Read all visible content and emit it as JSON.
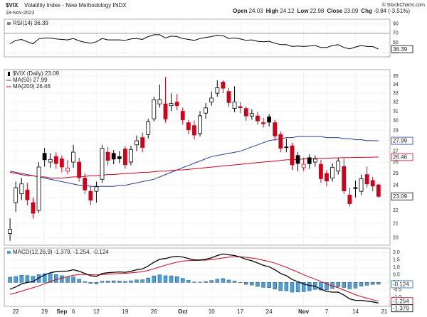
{
  "header": {
    "symbol": "$VIX",
    "name": "Volatility Index - New Methodology INDX",
    "date": "18-Nov-2022",
    "quote": [
      {
        "label": "Open",
        "value": "24.03"
      },
      {
        "label": "High",
        "value": "24.12"
      },
      {
        "label": "Low",
        "value": "22.98"
      },
      {
        "label": "Close",
        "value": "23.09"
      },
      {
        "label": "Chg",
        "value": "-0.84 (-3.51%)"
      }
    ],
    "credit": "© StockCharts.com"
  },
  "x_axis": {
    "xlim": [
      -1,
      66
    ],
    "xticks": [
      {
        "value": 1,
        "label": "22"
      },
      {
        "value": 6,
        "label": "29"
      },
      {
        "value": 9,
        "label": "Sep"
      },
      {
        "value": 11,
        "label": "6"
      },
      {
        "value": 15,
        "label": "12"
      },
      {
        "value": 20,
        "label": "19"
      },
      {
        "value": 25,
        "label": "26"
      },
      {
        "value": 30,
        "label": "Oct"
      },
      {
        "value": 35,
        "label": "10"
      },
      {
        "value": 40,
        "label": "17"
      },
      {
        "value": 45,
        "label": "24"
      },
      {
        "value": 51,
        "label": "Nov"
      },
      {
        "value": 55,
        "label": "7"
      },
      {
        "value": 60,
        "label": "14"
      },
      {
        "value": 65,
        "label": "21"
      }
    ]
  },
  "chart_data": [
    {
      "type": "line",
      "ylim": [
        20,
        100
      ],
      "yticks": [
        90,
        70,
        50,
        30
      ],
      "series": [
        {
          "name": "RSI(14) 36.39",
          "color": "#000000",
          "end_label": "36.39",
          "values": [
            48,
            55,
            57,
            52,
            48,
            58,
            60,
            60,
            58,
            57,
            56,
            59,
            54,
            51,
            49,
            52,
            59,
            56,
            56,
            56,
            55,
            58,
            59,
            57,
            63,
            67,
            67,
            60,
            64,
            63,
            59,
            57,
            55,
            59,
            61,
            63,
            66,
            65,
            59,
            60,
            58,
            55,
            56,
            53,
            52,
            53,
            49,
            46,
            46,
            42,
            43,
            42,
            43,
            44,
            40,
            40,
            44,
            46,
            40,
            37,
            41,
            44,
            42,
            42,
            36.39
          ]
        }
      ]
    },
    {
      "type": "candlestick",
      "title": "$VIX (Daily) 23.09",
      "end_label": "23.09",
      "log": true,
      "up_color": "#000000",
      "down_color": "#d0021b",
      "ylim": [
        19.5,
        35.8
      ],
      "yticks": [
        35,
        34,
        33,
        32,
        31,
        30,
        29,
        28,
        27,
        26,
        25,
        24,
        23,
        22,
        21,
        20
      ],
      "open": [
        20.3,
        22.6,
        23.3,
        23.6,
        22.6,
        22.0,
        26.8,
        26.0,
        26.5,
        26.3,
        25.2,
        26.0,
        26.0,
        24.6,
        23.5,
        23.5,
        24.5,
        26.9,
        26.8,
        26.5,
        27.2,
        26.0,
        27.6,
        28.3,
        28.6,
        30.2,
        31.8,
        31.8,
        31.6,
        32.0,
        31.0,
        29.8,
        29.5,
        28.7,
        30.8,
        32.0,
        33.0,
        34.3,
        33.2,
        31.3,
        31.5,
        31.3,
        30.5,
        30.5,
        29.8,
        30.4,
        29.8,
        28.6,
        27.4,
        27.5,
        26.6,
        25.5,
        26.4,
        26.0,
        25.8,
        25.0,
        24.6,
        25.2,
        25.6,
        23.2,
        23.8,
        23.5,
        24.9,
        24.4,
        24.03
      ],
      "high": [
        21.4,
        24.3,
        24.6,
        24.2,
        23.0,
        26.0,
        27.3,
        26.8,
        26.9,
        26.6,
        26.2,
        27.6,
        26.4,
        25.0,
        23.9,
        24.3,
        27.6,
        27.4,
        27.1,
        27.0,
        27.5,
        27.5,
        28.5,
        28.8,
        30.2,
        32.6,
        34.0,
        34.9,
        33.0,
        32.9,
        31.4,
        30.1,
        30.0,
        31.0,
        31.9,
        33.2,
        34.5,
        34.5,
        33.6,
        33.8,
        32.0,
        31.5,
        31.2,
        30.9,
        30.3,
        30.7,
        30.1,
        28.9,
        28.2,
        27.8,
        26.9,
        26.4,
        26.7,
        26.6,
        26.2,
        25.3,
        25.9,
        26.4,
        26.3,
        23.8,
        24.4,
        24.9,
        25.6,
        24.7,
        24.12
      ],
      "low": [
        19.8,
        21.9,
        22.8,
        22.4,
        21.4,
        21.8,
        25.6,
        25.5,
        25.4,
        25.1,
        24.9,
        25.5,
        24.3,
        23.3,
        22.4,
        22.6,
        24.2,
        25.7,
        25.8,
        25.9,
        25.4,
        25.7,
        27.0,
        26.9,
        28.2,
        29.9,
        31.4,
        29.8,
        31.0,
        31.1,
        29.6,
        28.6,
        28.1,
        28.4,
        30.2,
        31.6,
        32.6,
        33.0,
        31.5,
        30.9,
        30.8,
        30.0,
        30.1,
        29.6,
        29.3,
        29.4,
        28.0,
        26.9,
        26.9,
        25.3,
        25.2,
        25.2,
        25.4,
        25.6,
        24.2,
        23.9,
        24.3,
        24.9,
        23.3,
        22.3,
        23.0,
        23.2,
        23.8,
        23.5,
        22.98
      ],
      "close": [
        20.6,
        23.8,
        24.11,
        22.82,
        21.78,
        25.56,
        26.21,
        26.24,
        25.87,
        25.56,
        25.47,
        26.91,
        24.64,
        23.61,
        22.79,
        23.87,
        27.27,
        26.16,
        26.27,
        26.3,
        25.76,
        27.16,
        27.99,
        27.35,
        29.92,
        32.26,
        32.27,
        30.18,
        31.84,
        31.62,
        30.1,
        29.07,
        28.55,
        30.52,
        31.36,
        32.45,
        33.63,
        33.57,
        31.94,
        32.02,
        31.37,
        30.5,
        30.76,
        29.98,
        29.69,
        29.85,
        28.46,
        27.28,
        27.39,
        25.75,
        25.88,
        25.81,
        25.86,
        26.27,
        24.55,
        24.35,
        25.54,
        26.09,
        23.53,
        22.52,
        23.73,
        24.54,
        24.11,
        23.93,
        23.09
      ],
      "overlays": [
        {
          "name": "MA(50) 27.99",
          "color": "#2a3a9a",
          "end_label": "27.99",
          "values": [
            25.2,
            25.1,
            25.0,
            24.9,
            24.8,
            24.7,
            24.6,
            24.5,
            24.4,
            24.3,
            24.2,
            24.1,
            24.0,
            24.0,
            23.9,
            23.9,
            23.9,
            23.9,
            23.9,
            24.0,
            24.0,
            24.1,
            24.2,
            24.3,
            24.4,
            24.5,
            24.7,
            24.9,
            25.1,
            25.3,
            25.5,
            25.7,
            25.9,
            26.1,
            26.3,
            26.5,
            26.6,
            26.7,
            26.8,
            26.9,
            27.0,
            27.2,
            27.4,
            27.6,
            27.8,
            28.0,
            28.1,
            28.2,
            28.3,
            28.3,
            28.4,
            28.4,
            28.4,
            28.4,
            28.4,
            28.3,
            28.3,
            28.3,
            28.2,
            28.2,
            28.1,
            28.1,
            28.0,
            28.0,
            27.99
          ]
        },
        {
          "name": "MA(200) 26.46",
          "color": "#d0021b",
          "end_label": "26.46",
          "values": [
            25.1,
            25.0,
            24.9,
            24.8,
            24.8,
            24.7,
            24.7,
            24.6,
            24.6,
            24.6,
            24.65,
            24.7,
            24.7,
            24.75,
            24.8,
            24.8,
            24.85,
            24.9,
            24.9,
            24.95,
            25.0,
            25.0,
            25.05,
            25.1,
            25.1,
            25.15,
            25.2,
            25.2,
            25.25,
            25.3,
            25.3,
            25.35,
            25.4,
            25.45,
            25.5,
            25.55,
            25.6,
            25.65,
            25.7,
            25.75,
            25.8,
            25.85,
            25.9,
            25.95,
            26.0,
            26.05,
            26.1,
            26.15,
            26.2,
            26.22,
            26.25,
            26.27,
            26.3,
            26.32,
            26.34,
            26.35,
            26.37,
            26.38,
            26.4,
            26.41,
            26.42,
            26.43,
            26.44,
            26.45,
            26.46
          ]
        }
      ]
    },
    {
      "type": "macd",
      "title": "MACD(12,26,9) -1.379, -1.254, -0.124",
      "ylim": [
        -1.6,
        2.3
      ],
      "yticks": [
        {
          "value": 2,
          "label": "2.0"
        },
        1.5,
        {
          "value": 1,
          "label": "1.0"
        },
        0.5,
        {
          "value": 0,
          "label": "0.0"
        },
        -0.5,
        {
          "value": -1,
          "label": "-1.0"
        }
      ],
      "histogram": {
        "color": "#4f9fd6",
        "end_label": "-0.124",
        "values": [
          0.35,
          0.4,
          0.48,
          0.46,
          0.41,
          0.53,
          0.59,
          0.59,
          0.53,
          0.45,
          0.37,
          0.37,
          0.22,
          0.06,
          -0.07,
          -0.1,
          0.08,
          0.1,
          0.11,
          0.1,
          0.07,
          0.11,
          0.17,
          0.18,
          0.3,
          0.44,
          0.51,
          0.45,
          0.44,
          0.39,
          0.27,
          0.14,
          0.03,
          0.02,
          0.06,
          0.13,
          0.22,
          0.26,
          0.16,
          0.09,
          -0.01,
          -0.13,
          -0.18,
          -0.27,
          -0.33,
          -0.35,
          -0.44,
          -0.55,
          -0.56,
          -0.65,
          -0.64,
          -0.62,
          -0.56,
          -0.47,
          -0.51,
          -0.5,
          -0.41,
          -0.29,
          -0.34,
          -0.43,
          -0.38,
          -0.25,
          -0.19,
          -0.14,
          -0.124
        ]
      },
      "macd": {
        "color": "#000000",
        "end_label": "-1.379",
        "values": [
          -0.45,
          -0.3,
          -0.1,
          0.0,
          0.05,
          0.3,
          0.5,
          0.65,
          0.72,
          0.75,
          0.76,
          0.85,
          0.75,
          0.6,
          0.45,
          0.4,
          0.6,
          0.65,
          0.68,
          0.7,
          0.68,
          0.75,
          0.85,
          0.9,
          1.1,
          1.35,
          1.55,
          1.6,
          1.7,
          1.75,
          1.7,
          1.6,
          1.5,
          1.5,
          1.55,
          1.65,
          1.8,
          1.9,
          1.85,
          1.8,
          1.7,
          1.55,
          1.45,
          1.3,
          1.15,
          1.05,
          0.85,
          0.6,
          0.45,
          0.2,
          0.05,
          -0.1,
          -0.2,
          -0.25,
          -0.45,
          -0.6,
          -0.65,
          -0.65,
          -0.85,
          -1.1,
          -1.2,
          -1.2,
          -1.25,
          -1.3,
          -1.379
        ]
      },
      "signal": {
        "color": "#d0021b",
        "end_label": "-1.254",
        "values": [
          -0.8,
          -0.7,
          -0.58,
          -0.46,
          -0.36,
          -0.23,
          -0.09,
          0.06,
          0.19,
          0.3,
          0.39,
          0.48,
          0.53,
          0.54,
          0.52,
          0.5,
          0.52,
          0.55,
          0.57,
          0.6,
          0.61,
          0.64,
          0.68,
          0.72,
          0.8,
          0.91,
          1.04,
          1.15,
          1.26,
          1.36,
          1.43,
          1.46,
          1.47,
          1.48,
          1.49,
          1.52,
          1.58,
          1.64,
          1.69,
          1.71,
          1.71,
          1.68,
          1.63,
          1.57,
          1.48,
          1.4,
          1.29,
          1.15,
          1.01,
          0.85,
          0.69,
          0.52,
          0.36,
          0.22,
          0.06,
          -0.1,
          -0.24,
          -0.36,
          -0.51,
          -0.67,
          -0.82,
          -0.95,
          -1.06,
          -1.16,
          -1.254
        ]
      }
    }
  ]
}
